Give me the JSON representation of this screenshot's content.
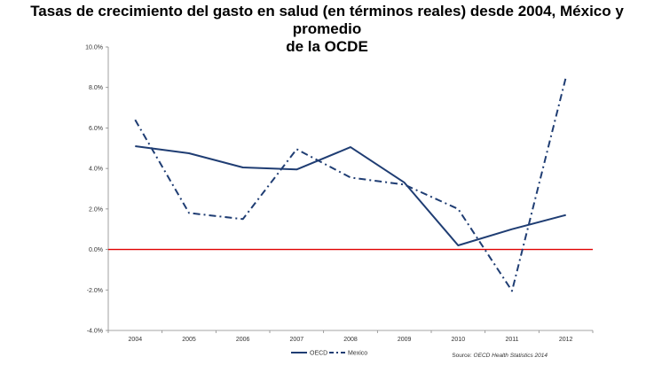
{
  "title_line1": "Tasas de crecimiento del gasto en salud (en términos reales) desde 2004, México y promedio",
  "title_line2": "de la OCDE",
  "source_prefix": "Source: ",
  "source_italic": "OECD Health Statistics 2014",
  "colors": {
    "series": "#1f3d73",
    "zero_line": "#e00000",
    "axis": "#888888"
  },
  "chart_data": {
    "type": "line",
    "x": [
      "2004",
      "2005",
      "2006",
      "2007",
      "2008",
      "2009",
      "2010",
      "2011",
      "2012"
    ],
    "ylim": [
      -4.0,
      10.0
    ],
    "yticks": [
      10.0,
      8.0,
      6.0,
      4.0,
      2.0,
      0.0,
      -2.0,
      -4.0
    ],
    "ytick_labels": [
      "10.0%",
      "8.0%",
      "6.0%",
      "4.0%",
      "2.0%",
      "0.0%",
      "-2.0%",
      "-4.0%"
    ],
    "grid": false,
    "legend_position": "bottom",
    "reference_line": 0.0,
    "series": [
      {
        "name": "OECD",
        "style": "solid",
        "values": [
          5.1,
          4.75,
          4.05,
          3.95,
          5.05,
          3.3,
          0.2,
          1.0,
          1.7
        ]
      },
      {
        "name": "Mexico",
        "style": "dashdot",
        "values": [
          6.4,
          1.8,
          1.5,
          4.95,
          3.55,
          3.2,
          2.0,
          -2.05,
          8.5
        ]
      }
    ]
  }
}
